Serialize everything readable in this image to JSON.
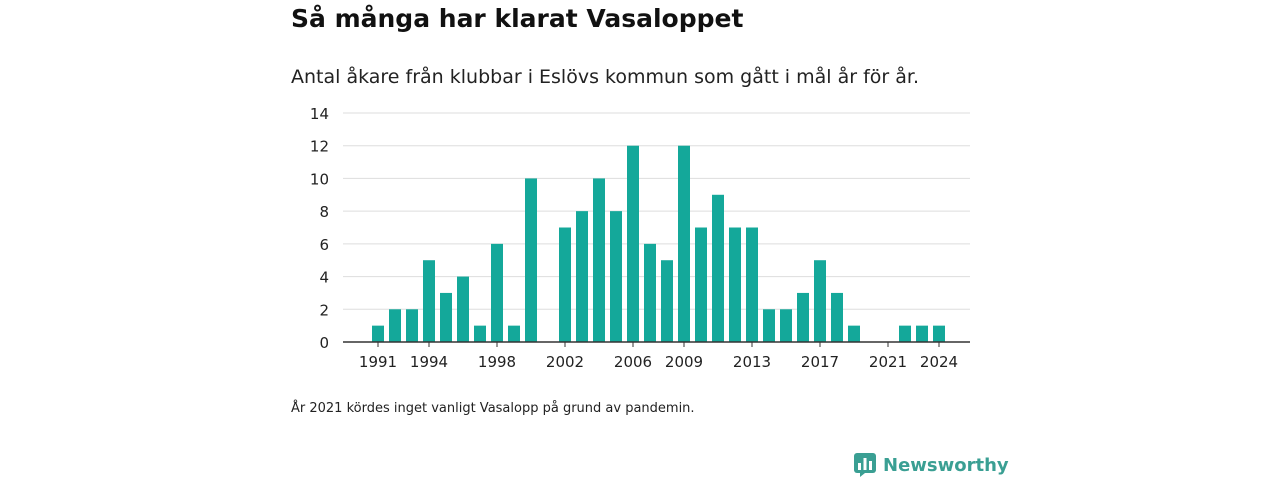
{
  "title": "Så många har klarat Vasaloppet",
  "subtitle": "Antal åkare från klubbar i Eslövs kommun som gått i mål år för år.",
  "note": "År 2021 kördes inget vanligt Vasalopp på grund av pandemin.",
  "brand": {
    "name": "Newsworthy",
    "icon": "newsworthy-logo-icon"
  },
  "colors": {
    "bar": "#14a89a",
    "grid": "#dddddd",
    "axis": "#333333",
    "brand": "#3a9f93"
  },
  "chart_data": {
    "type": "bar",
    "x": [
      1991,
      1992,
      1993,
      1994,
      1995,
      1996,
      1997,
      1998,
      1999,
      2000,
      2001,
      2002,
      2003,
      2004,
      2005,
      2006,
      2007,
      2008,
      2009,
      2010,
      2011,
      2012,
      2013,
      2014,
      2015,
      2016,
      2017,
      2018,
      2019,
      2020,
      2021,
      2022,
      2023,
      2024
    ],
    "values": [
      1,
      2,
      2,
      5,
      3,
      4,
      1,
      6,
      1,
      10,
      0,
      7,
      8,
      10,
      8,
      12,
      6,
      5,
      12,
      7,
      9,
      7,
      7,
      2,
      2,
      3,
      5,
      3,
      1,
      0,
      0,
      1,
      1,
      1
    ],
    "x_tick_labels": [
      "1991",
      "1994",
      "1998",
      "2002",
      "2006",
      "2009",
      "2013",
      "2017",
      "2021",
      "2024"
    ],
    "y_ticks": [
      0,
      2,
      4,
      6,
      8,
      10,
      12,
      14
    ],
    "ylim": [
      0,
      14
    ],
    "xlabel": "",
    "ylabel": "",
    "grid": true
  }
}
